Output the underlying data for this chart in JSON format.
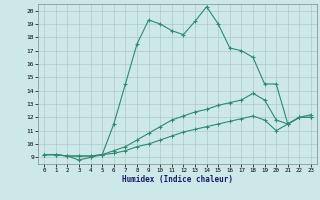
{
  "xlabel": "Humidex (Indice chaleur)",
  "background_color": "#cce8e8",
  "grid_color": "#b0c8c8",
  "line_color": "#2e8b6e",
  "xlim": [
    -0.5,
    23.5
  ],
  "ylim": [
    8.5,
    20.5
  ],
  "xticks": [
    0,
    1,
    2,
    3,
    4,
    5,
    6,
    7,
    8,
    9,
    10,
    11,
    12,
    13,
    14,
    15,
    16,
    17,
    18,
    19,
    20,
    21,
    22,
    23
  ],
  "yticks": [
    9,
    10,
    11,
    12,
    13,
    14,
    15,
    16,
    17,
    18,
    19,
    20
  ],
  "line1_x": [
    0,
    1,
    2,
    3,
    4,
    5,
    6,
    7,
    8,
    9,
    10,
    11,
    12,
    13,
    14,
    15,
    16,
    17,
    18,
    19,
    20,
    21,
    22,
    23
  ],
  "line1_y": [
    9.2,
    9.2,
    9.1,
    8.8,
    9.0,
    9.2,
    11.5,
    14.5,
    17.5,
    19.3,
    19.0,
    18.5,
    18.2,
    19.2,
    20.3,
    19.0,
    17.2,
    17.0,
    16.5,
    14.5,
    14.5,
    11.5,
    12.0,
    12.0
  ],
  "line2_x": [
    0,
    1,
    2,
    3,
    4,
    5,
    6,
    7,
    8,
    9,
    10,
    11,
    12,
    13,
    14,
    15,
    16,
    17,
    18,
    19,
    20,
    21,
    22,
    23
  ],
  "line2_y": [
    9.2,
    9.2,
    9.1,
    9.1,
    9.1,
    9.2,
    9.5,
    9.8,
    10.3,
    10.8,
    11.3,
    11.8,
    12.1,
    12.4,
    12.6,
    12.9,
    13.1,
    13.3,
    13.8,
    13.3,
    11.8,
    11.5,
    12.0,
    12.0
  ],
  "line3_x": [
    0,
    1,
    2,
    3,
    4,
    5,
    6,
    7,
    8,
    9,
    10,
    11,
    12,
    13,
    14,
    15,
    16,
    17,
    18,
    19,
    20,
    21,
    22,
    23
  ],
  "line3_y": [
    9.2,
    9.2,
    9.1,
    9.1,
    9.1,
    9.2,
    9.3,
    9.5,
    9.8,
    10.0,
    10.3,
    10.6,
    10.9,
    11.1,
    11.3,
    11.5,
    11.7,
    11.9,
    12.1,
    11.8,
    11.0,
    11.5,
    12.0,
    12.2
  ]
}
